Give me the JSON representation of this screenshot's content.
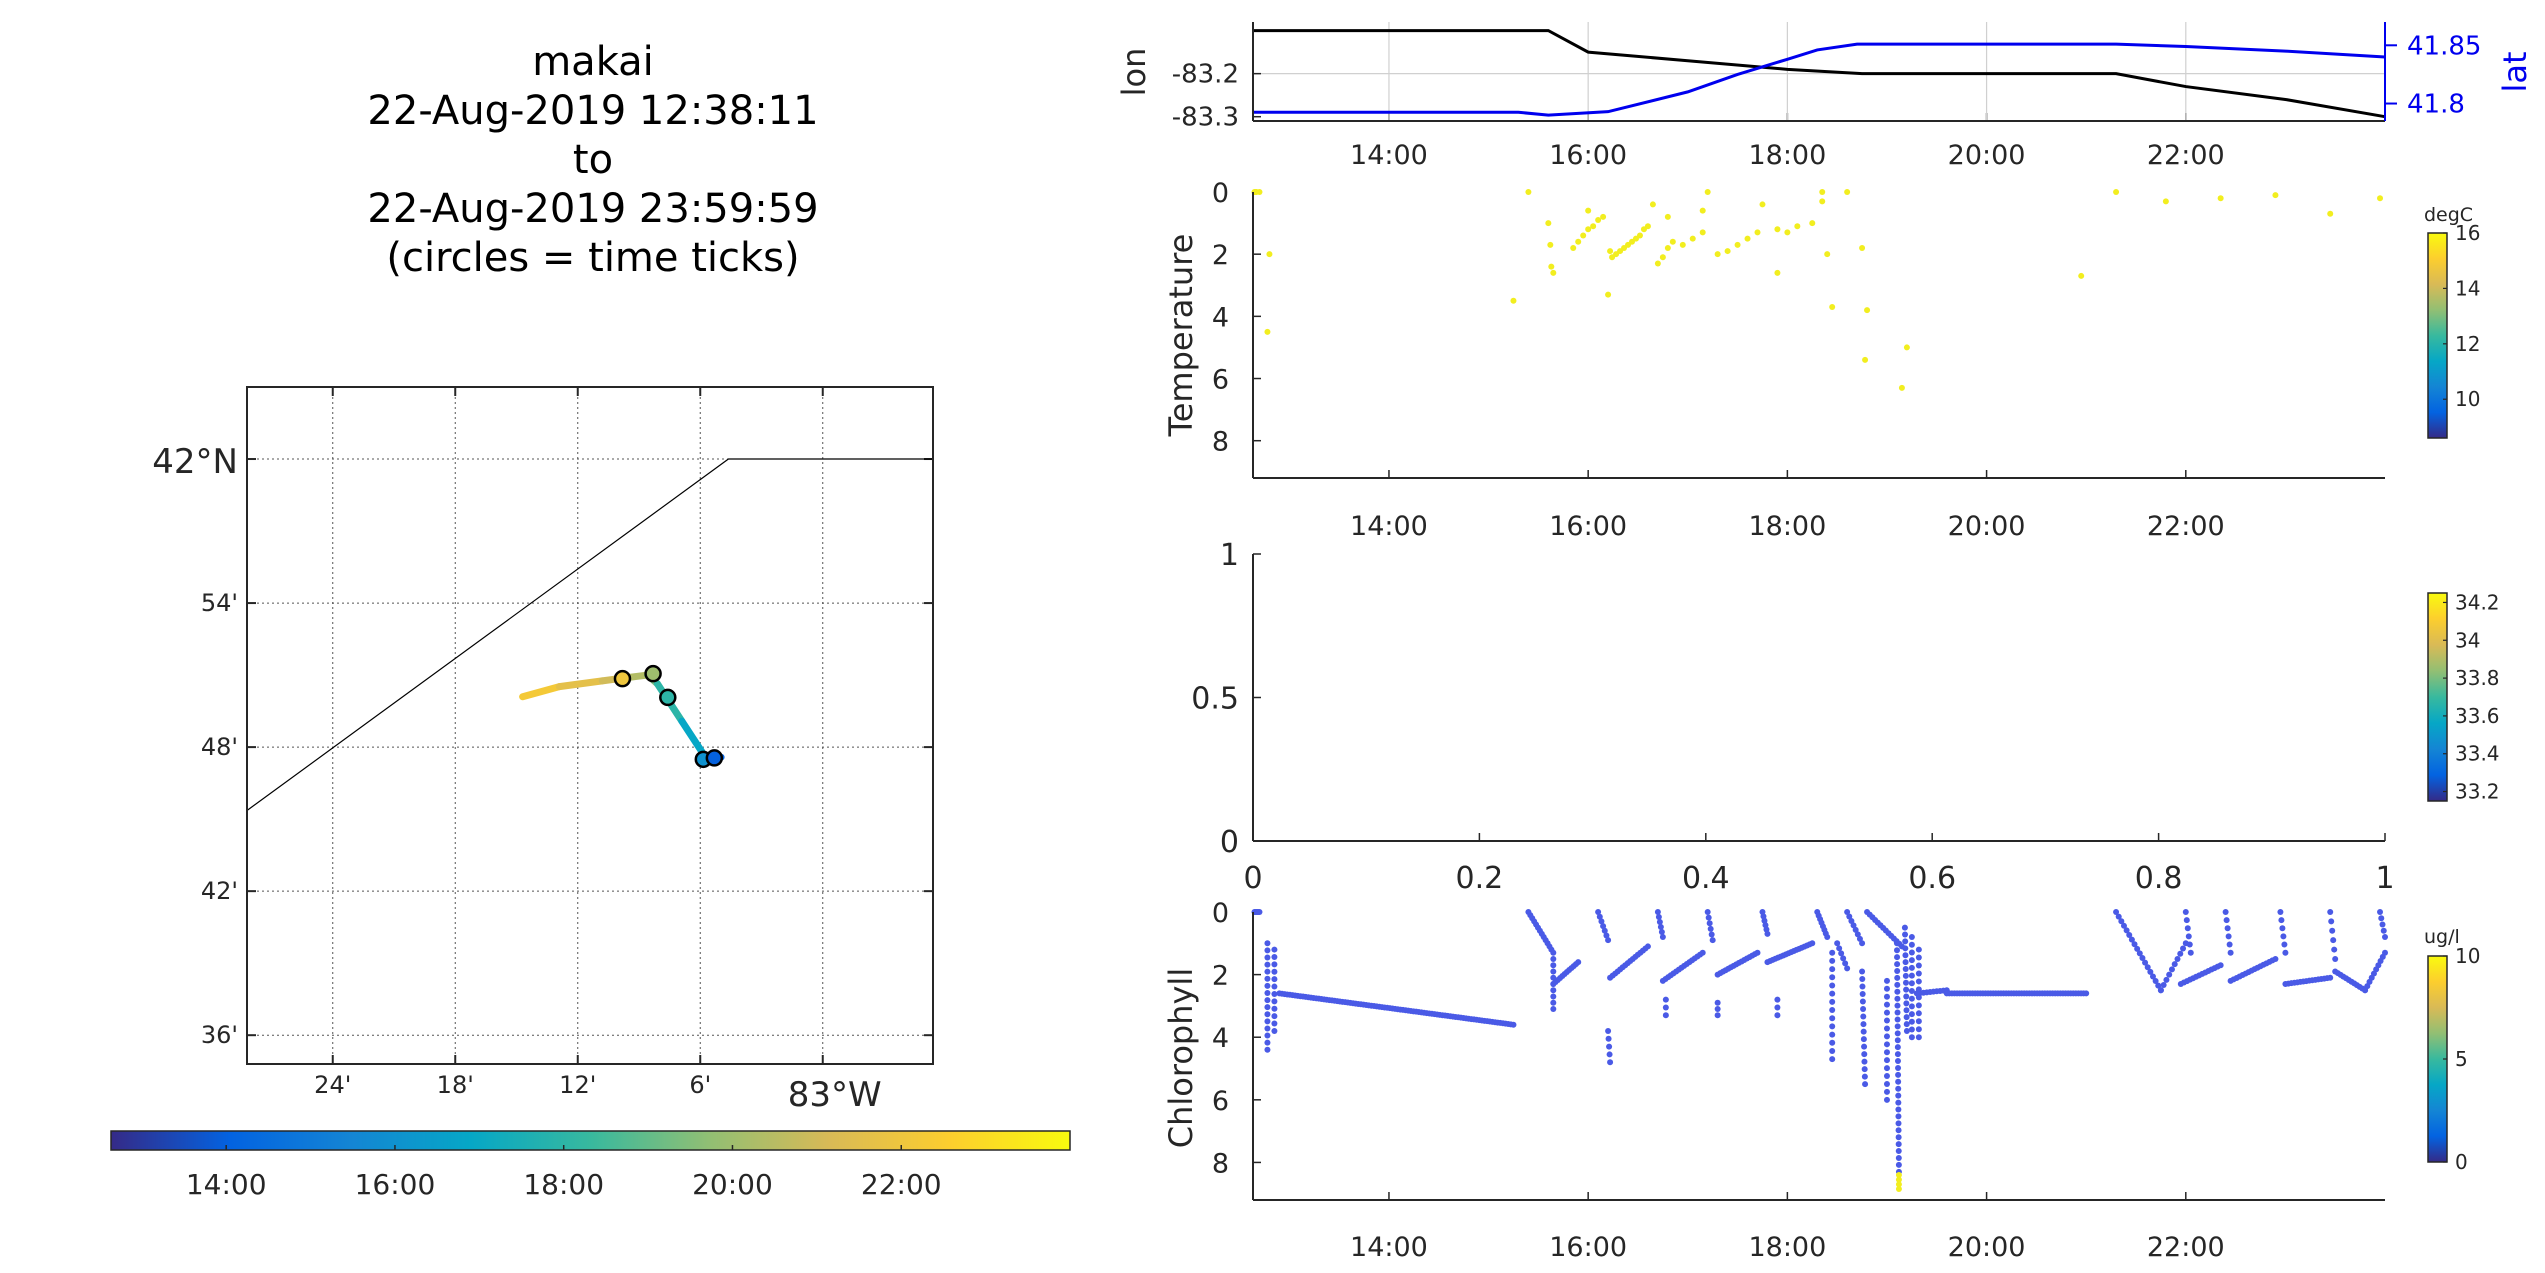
{
  "header": {
    "title_lines": [
      "makai",
      "22-Aug-2019 12:38:11",
      "to",
      "22-Aug-2019 23:59:59",
      "(circles = time ticks)"
    ]
  },
  "colors": {
    "axis": "#262626",
    "grid": "#d0d0d0",
    "lon_line": "#000000",
    "lat_line": "#0000ee",
    "temperature_points": "#f2ee1f",
    "chlorophyll_points": "#4a5ae6",
    "parula": [
      "#352a87",
      "#0363e1",
      "#1485d4",
      "#06a7c6",
      "#38b99e",
      "#92bf73",
      "#d9ba56",
      "#fcce2e",
      "#f9fb0e"
    ]
  },
  "chart_data": [
    {
      "type": "line",
      "panel": "map",
      "lat_ticks": [
        "42°N",
        "54'",
        "48'",
        "42'",
        "36'"
      ],
      "lon_ticks": [
        "24'",
        "18'",
        "12'",
        "6'",
        "83°W"
      ],
      "lat_range": [
        41.58,
        42.05
      ],
      "lon_range": [
        -83.47,
        -82.91
      ],
      "shoreline": [
        {
          "lon": -83.47,
          "lat": 41.756
        },
        {
          "lon": -83.077,
          "lat": 42.0
        },
        {
          "lon": -82.91,
          "lat": 42.0
        }
      ],
      "track": [
        {
          "lon": -83.245,
          "lat": 41.835,
          "t": 22.5
        },
        {
          "lon": -83.215,
          "lat": 41.842,
          "t": 22.0
        },
        {
          "lon": -83.18,
          "lat": 41.846,
          "t": 21.2
        },
        {
          "lon": -83.162,
          "lat": 41.848,
          "t": 20.8
        },
        {
          "lon": -83.143,
          "lat": 41.85,
          "t": 20.0
        },
        {
          "lon": -83.135,
          "lat": 41.844,
          "t": 18.5
        },
        {
          "lon": -83.115,
          "lat": 41.818,
          "t": 17.5
        },
        {
          "lon": -83.095,
          "lat": 41.792,
          "t": 16.3
        },
        {
          "lon": -83.086,
          "lat": 41.793,
          "t": 15.4
        },
        {
          "lon": -83.083,
          "lat": 41.793,
          "t": 12.7
        }
      ],
      "time_tick_circles": [
        {
          "lon": -83.1635,
          "lat": 41.8475,
          "t": 22.0
        },
        {
          "lon": -83.1385,
          "lat": 41.851,
          "t": 20.0
        },
        {
          "lon": -83.1265,
          "lat": 41.8345,
          "t": 18.0
        },
        {
          "lon": -83.0975,
          "lat": 41.7915,
          "t": 16.0
        },
        {
          "lon": -83.0885,
          "lat": 41.7925,
          "t": 14.0
        }
      ],
      "colorbar": {
        "ticks": [
          "14:00",
          "16:00",
          "18:00",
          "20:00",
          "22:00"
        ],
        "range": [
          12.635,
          24.0
        ]
      }
    },
    {
      "type": "line",
      "panel": "position",
      "x_range": [
        12.635,
        24.0
      ],
      "x_ticks": [
        "14:00",
        "16:00",
        "18:00",
        "20:00",
        "22:00"
      ],
      "y_left": {
        "label": "lon",
        "ticks": [
          "-83.2",
          "-83.3"
        ],
        "range": [
          -83.31,
          -83.08
        ]
      },
      "y_right": {
        "label": "lat",
        "ticks": [
          "41.85",
          "41.8"
        ],
        "range": [
          41.785,
          41.87
        ]
      },
      "grid": true,
      "series": [
        {
          "name": "lon",
          "axis": "left",
          "x": [
            12.64,
            14.0,
            15.3,
            15.6,
            16.0,
            17.0,
            18.0,
            18.75,
            21.3,
            22.0,
            23.0,
            24.0
          ],
          "y": [
            -83.1,
            -83.1,
            -83.1,
            -83.1,
            -83.15,
            -83.17,
            -83.19,
            -83.2,
            -83.2,
            -83.23,
            -83.26,
            -83.3
          ]
        },
        {
          "name": "lat",
          "axis": "right",
          "x": [
            12.64,
            14.0,
            15.3,
            15.6,
            16.2,
            17.0,
            17.5,
            18.0,
            18.3,
            18.7,
            20.0,
            21.3,
            22.0,
            23.0,
            24.0
          ],
          "y": [
            41.7925,
            41.7925,
            41.7925,
            41.79,
            41.793,
            41.81,
            41.825,
            41.838,
            41.846,
            41.851,
            41.851,
            41.851,
            41.849,
            41.845,
            41.84
          ]
        }
      ]
    },
    {
      "type": "scatter",
      "panel": "temperature",
      "ylabel": "Temperature",
      "x_range": [
        12.635,
        24.0
      ],
      "y_range": [
        0,
        9.2
      ],
      "y_reversed": true,
      "y_ticks": [
        "0",
        "2",
        "4",
        "6",
        "8"
      ],
      "x_ticks": [
        "14:00",
        "16:00",
        "18:00",
        "20:00",
        "22:00"
      ],
      "colorbar": {
        "unit": "degC",
        "ticks": [
          "16",
          "14",
          "12",
          "10"
        ],
        "range": [
          8.6,
          16.0
        ]
      },
      "points": [
        [
          12.65,
          0.0
        ],
        [
          12.66,
          0.0
        ],
        [
          12.67,
          0.0
        ],
        [
          12.7,
          0.0
        ],
        [
          12.8,
          2.0
        ],
        [
          12.78,
          4.5
        ],
        [
          15.25,
          3.5
        ],
        [
          15.4,
          0.0
        ],
        [
          15.6,
          1.0
        ],
        [
          15.62,
          1.7
        ],
        [
          15.65,
          2.6
        ],
        [
          15.63,
          2.4
        ],
        [
          15.85,
          1.8
        ],
        [
          15.9,
          1.6
        ],
        [
          15.95,
          1.4
        ],
        [
          16.0,
          1.2
        ],
        [
          16.05,
          1.1
        ],
        [
          16.0,
          0.6
        ],
        [
          16.1,
          0.9
        ],
        [
          16.15,
          0.8
        ],
        [
          16.2,
          3.3
        ],
        [
          16.22,
          1.9
        ],
        [
          16.24,
          2.1
        ],
        [
          16.28,
          2.0
        ],
        [
          16.32,
          1.9
        ],
        [
          16.36,
          1.8
        ],
        [
          16.4,
          1.7
        ],
        [
          16.44,
          1.6
        ],
        [
          16.48,
          1.5
        ],
        [
          16.52,
          1.4
        ],
        [
          16.56,
          1.2
        ],
        [
          16.6,
          1.1
        ],
        [
          16.65,
          0.4
        ],
        [
          16.7,
          2.3
        ],
        [
          16.75,
          2.1
        ],
        [
          16.8,
          1.8
        ],
        [
          16.85,
          1.6
        ],
        [
          16.8,
          0.8
        ],
        [
          16.95,
          1.7
        ],
        [
          17.05,
          1.5
        ],
        [
          17.15,
          1.3
        ],
        [
          17.15,
          0.6
        ],
        [
          17.2,
          0.0
        ],
        [
          17.3,
          2.0
        ],
        [
          17.4,
          1.9
        ],
        [
          17.5,
          1.7
        ],
        [
          17.6,
          1.5
        ],
        [
          17.7,
          1.3
        ],
        [
          17.75,
          0.4
        ],
        [
          17.9,
          1.2
        ],
        [
          17.9,
          2.6
        ],
        [
          18.0,
          1.3
        ],
        [
          18.1,
          1.1
        ],
        [
          18.25,
          1.0
        ],
        [
          18.35,
          0.0
        ],
        [
          18.35,
          0.3
        ],
        [
          18.4,
          2.0
        ],
        [
          18.45,
          3.7
        ],
        [
          18.6,
          0.0
        ],
        [
          18.75,
          1.8
        ],
        [
          18.8,
          3.8
        ],
        [
          18.78,
          5.4
        ],
        [
          19.15,
          6.3
        ],
        [
          19.2,
          5.0
        ],
        [
          20.95,
          2.7
        ],
        [
          21.3,
          0.0
        ],
        [
          21.8,
          0.3
        ],
        [
          22.35,
          0.2
        ],
        [
          22.9,
          0.1
        ],
        [
          23.45,
          0.7
        ],
        [
          23.95,
          0.2
        ]
      ]
    },
    {
      "type": "scatter",
      "panel": "salinity",
      "x_range": [
        0,
        1
      ],
      "y_range": [
        0,
        1
      ],
      "x_ticks": [
        "0",
        "0.2",
        "0.4",
        "0.6",
        "0.8",
        "1"
      ],
      "y_ticks": [
        "1",
        "0.5",
        "0"
      ],
      "colorbar": {
        "ticks": [
          "34.2",
          "34",
          "33.8",
          "33.6",
          "33.4",
          "33.2"
        ],
        "range": [
          33.15,
          34.25
        ]
      },
      "points": []
    },
    {
      "type": "scatter",
      "panel": "chlorophyll",
      "ylabel": "Chlorophyll",
      "x_range": [
        12.635,
        24.0
      ],
      "y_range": [
        0,
        9.2
      ],
      "y_reversed": true,
      "y_ticks": [
        "0",
        "2",
        "4",
        "6",
        "8"
      ],
      "x_ticks": [
        "14:00",
        "16:00",
        "18:00",
        "20:00",
        "22:00"
      ],
      "colorbar": {
        "unit": "ug/l",
        "ticks": [
          "10",
          "5",
          "0"
        ],
        "range": [
          0,
          10
        ]
      },
      "segments": [
        {
          "x0": 12.65,
          "y0": 0.0,
          "x1": 12.7,
          "y1": 0.0,
          "n": 6
        },
        {
          "x0": 12.78,
          "y0": 1.0,
          "x1": 12.78,
          "y1": 4.4,
          "n": 16
        },
        {
          "x0": 12.85,
          "y0": 1.2,
          "x1": 12.85,
          "y1": 3.8,
          "n": 12
        },
        {
          "x0": 12.9,
          "y0": 2.6,
          "x1": 15.25,
          "y1": 3.6,
          "n": 90
        },
        {
          "x0": 15.4,
          "y0": 0.0,
          "x1": 15.65,
          "y1": 1.3,
          "n": 14
        },
        {
          "x0": 15.65,
          "y0": 1.5,
          "x1": 15.65,
          "y1": 3.1,
          "n": 9
        },
        {
          "x0": 15.65,
          "y0": 2.3,
          "x1": 15.9,
          "y1": 1.6,
          "n": 12
        },
        {
          "x0": 16.1,
          "y0": 0.0,
          "x1": 16.2,
          "y1": 0.9,
          "n": 7
        },
        {
          "x0": 16.2,
          "y0": 3.8,
          "x1": 16.22,
          "y1": 4.8,
          "n": 5
        },
        {
          "x0": 16.22,
          "y0": 2.1,
          "x1": 16.6,
          "y1": 1.1,
          "n": 16
        },
        {
          "x0": 16.7,
          "y0": 0.0,
          "x1": 16.75,
          "y1": 0.8,
          "n": 6
        },
        {
          "x0": 16.75,
          "y0": 2.2,
          "x1": 17.15,
          "y1": 1.3,
          "n": 16
        },
        {
          "x0": 16.78,
          "y0": 2.8,
          "x1": 16.78,
          "y1": 3.3,
          "n": 3
        },
        {
          "x0": 17.2,
          "y0": 0.0,
          "x1": 17.25,
          "y1": 0.9,
          "n": 6
        },
        {
          "x0": 17.3,
          "y0": 2.0,
          "x1": 17.7,
          "y1": 1.3,
          "n": 16
        },
        {
          "x0": 17.3,
          "y0": 2.9,
          "x1": 17.3,
          "y1": 3.3,
          "n": 3
        },
        {
          "x0": 17.75,
          "y0": 0.0,
          "x1": 17.8,
          "y1": 0.7,
          "n": 6
        },
        {
          "x0": 17.8,
          "y0": 1.6,
          "x1": 18.25,
          "y1": 1.0,
          "n": 18
        },
        {
          "x0": 17.9,
          "y0": 2.8,
          "x1": 17.9,
          "y1": 3.3,
          "n": 3
        },
        {
          "x0": 18.3,
          "y0": 0.0,
          "x1": 18.4,
          "y1": 0.8,
          "n": 8
        },
        {
          "x0": 18.45,
          "y0": 1.3,
          "x1": 18.45,
          "y1": 4.7,
          "n": 14
        },
        {
          "x0": 18.5,
          "y0": 1.0,
          "x1": 18.6,
          "y1": 1.8,
          "n": 6
        },
        {
          "x0": 18.6,
          "y0": 0.0,
          "x1": 18.75,
          "y1": 1.0,
          "n": 8
        },
        {
          "x0": 18.75,
          "y0": 1.9,
          "x1": 18.78,
          "y1": 5.5,
          "n": 16
        },
        {
          "x0": 18.8,
          "y0": 0.0,
          "x1": 19.15,
          "y1": 1.1,
          "n": 14
        },
        {
          "x0": 19.0,
          "y0": 2.2,
          "x1": 19.0,
          "y1": 6.0,
          "n": 16
        },
        {
          "x0": 19.1,
          "y0": 1.0,
          "x1": 19.12,
          "y1": 8.3,
          "n": 34
        },
        {
          "x0": 19.18,
          "y0": 0.5,
          "x1": 19.2,
          "y1": 3.8,
          "n": 16
        },
        {
          "x0": 19.25,
          "y0": 0.8,
          "x1": 19.25,
          "y1": 4.0,
          "n": 14
        },
        {
          "x0": 19.32,
          "y0": 1.2,
          "x1": 19.32,
          "y1": 4.0,
          "n": 12
        },
        {
          "x0": 19.3,
          "y0": 2.6,
          "x1": 19.6,
          "y1": 2.5,
          "n": 10
        },
        {
          "x0": 19.6,
          "y0": 2.6,
          "x1": 21.0,
          "y1": 2.6,
          "n": 55
        },
        {
          "x0": 21.3,
          "y0": 0.0,
          "x1": 21.75,
          "y1": 2.5,
          "n": 18
        },
        {
          "x0": 21.75,
          "y0": 2.5,
          "x1": 22.0,
          "y1": 1.0,
          "n": 10
        },
        {
          "x0": 22.0,
          "y0": 0.0,
          "x1": 22.05,
          "y1": 1.3,
          "n": 6
        },
        {
          "x0": 21.95,
          "y0": 2.3,
          "x1": 22.35,
          "y1": 1.7,
          "n": 14
        },
        {
          "x0": 22.4,
          "y0": 0.0,
          "x1": 22.45,
          "y1": 1.3,
          "n": 6
        },
        {
          "x0": 22.45,
          "y0": 2.2,
          "x1": 22.9,
          "y1": 1.5,
          "n": 16
        },
        {
          "x0": 22.95,
          "y0": 0.0,
          "x1": 23.0,
          "y1": 1.3,
          "n": 6
        },
        {
          "x0": 23.0,
          "y0": 2.3,
          "x1": 23.45,
          "y1": 2.1,
          "n": 16
        },
        {
          "x0": 23.45,
          "y0": 0.0,
          "x1": 23.5,
          "y1": 1.5,
          "n": 6
        },
        {
          "x0": 23.5,
          "y0": 1.9,
          "x1": 23.8,
          "y1": 2.5,
          "n": 12
        },
        {
          "x0": 23.8,
          "y0": 2.5,
          "x1": 24.0,
          "y1": 1.3,
          "n": 10
        },
        {
          "x0": 23.95,
          "y0": 0.0,
          "x1": 24.0,
          "y1": 0.8,
          "n": 5
        }
      ],
      "yellow_points": [
        [
          19.12,
          8.4
        ],
        [
          19.12,
          8.55
        ],
        [
          19.12,
          8.7
        ],
        [
          19.12,
          8.85
        ]
      ]
    }
  ]
}
